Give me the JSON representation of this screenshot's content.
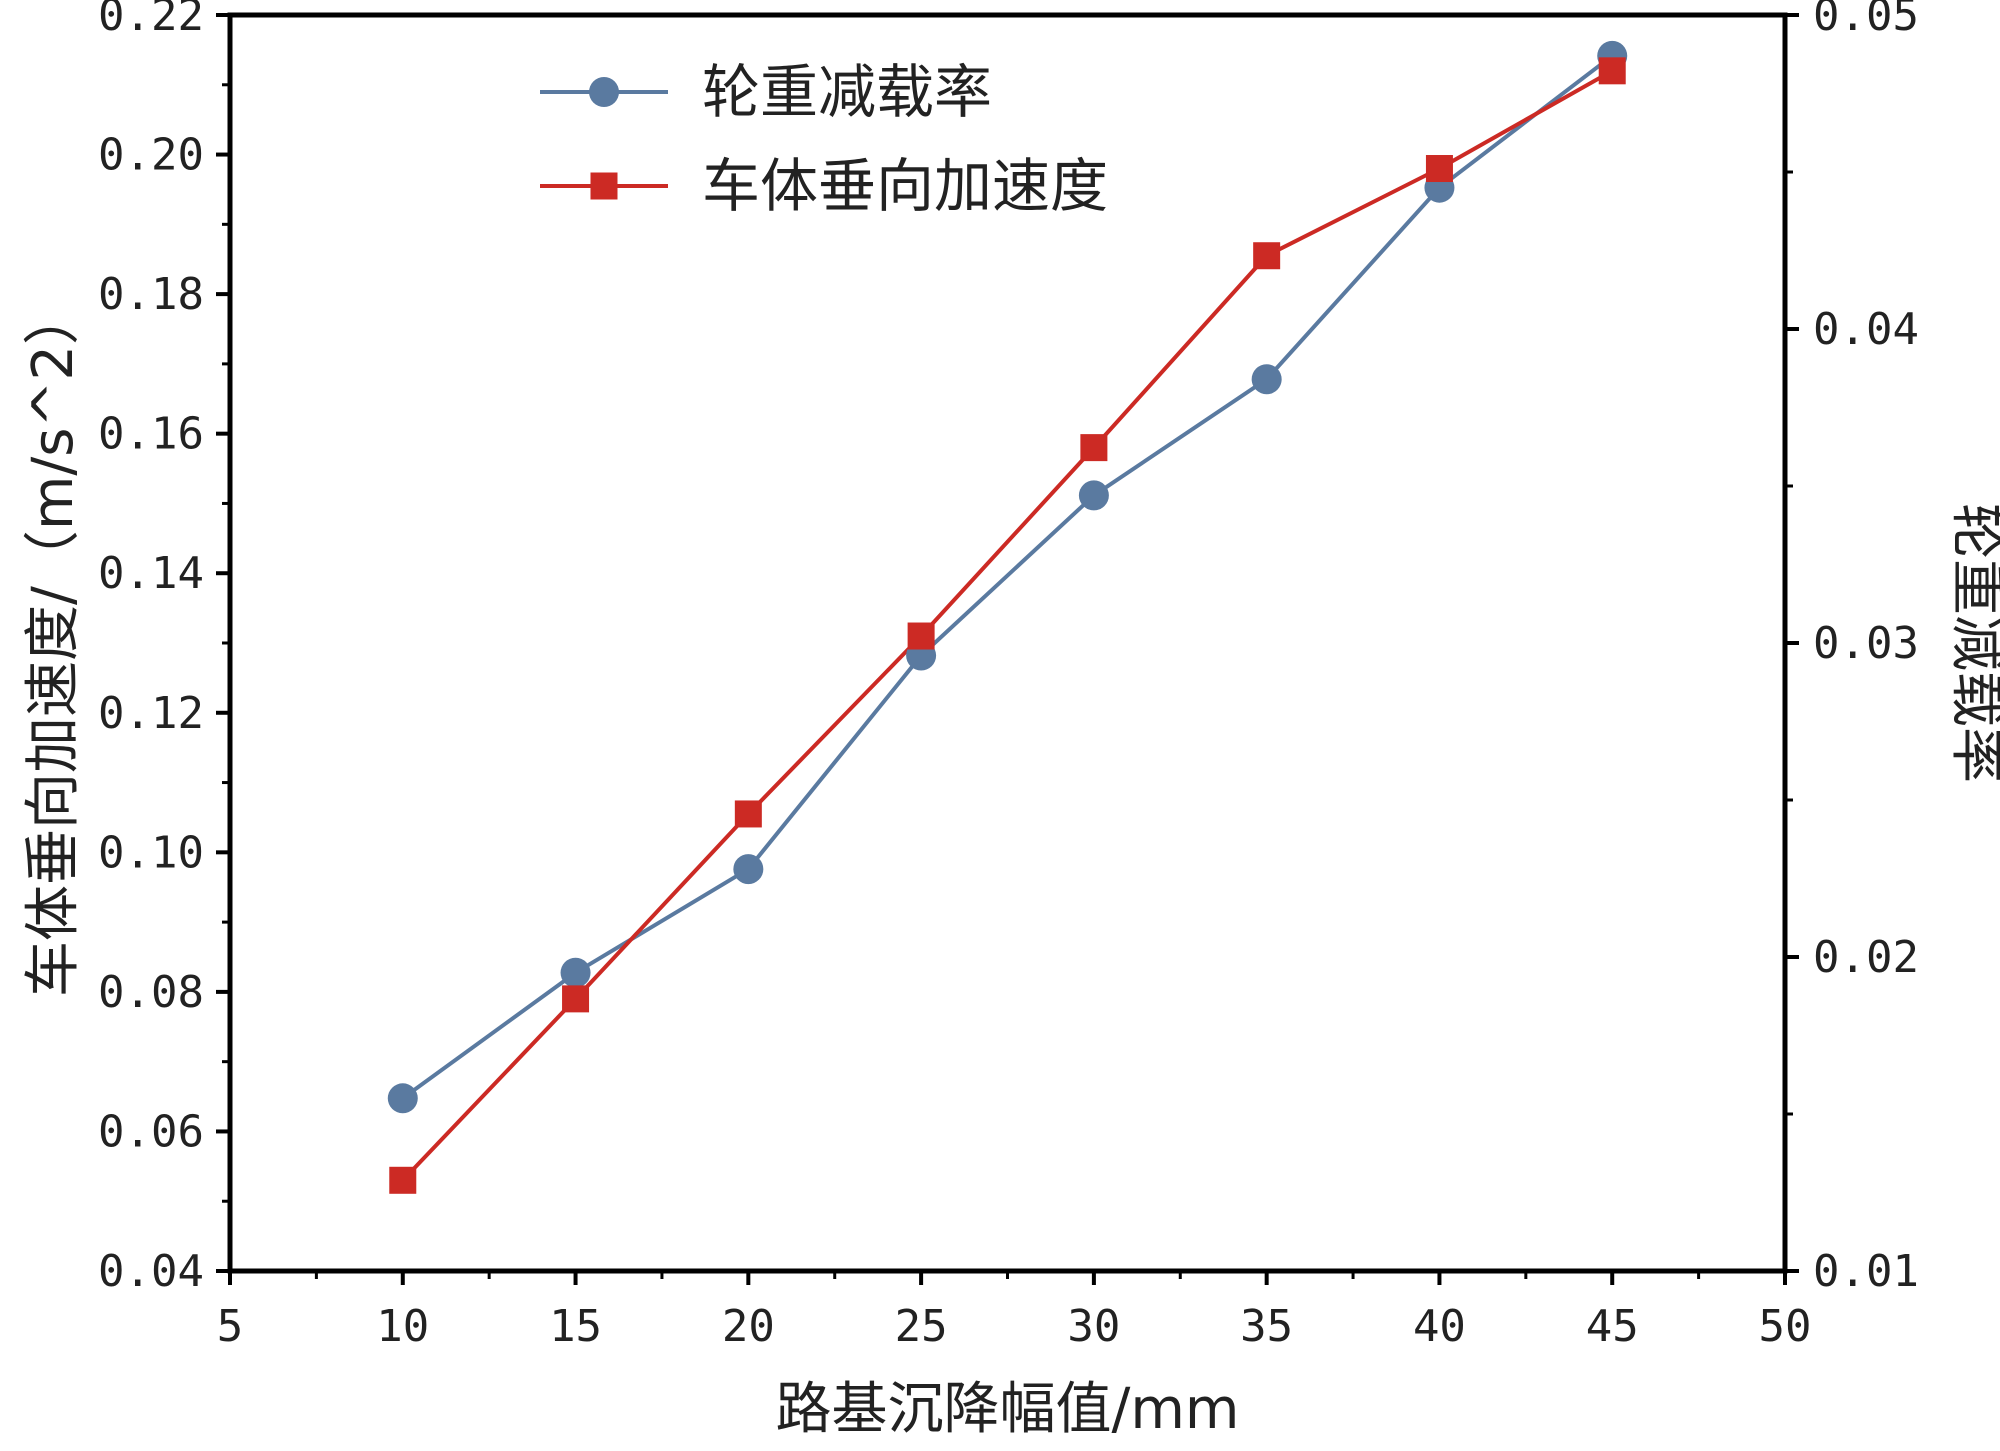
{
  "chart_data": {
    "type": "line",
    "xlabel": "路基沉降幅值/mm",
    "ylabel_left": "车体垂向加速度/（m/s^2）",
    "ylabel_right": "轮重减载率",
    "xlim": [
      5,
      50
    ],
    "x_ticks": [
      "5",
      "10",
      "15",
      "20",
      "25",
      "30",
      "35",
      "40",
      "45",
      "50"
    ],
    "ylim_left": [
      0.04,
      0.22
    ],
    "y_ticks_left": [
      "0.04",
      "0.06",
      "0.08",
      "0.10",
      "0.12",
      "0.14",
      "0.16",
      "0.18",
      "0.20",
      "0.22"
    ],
    "ylim_right": [
      0.01,
      0.05
    ],
    "y_ticks_right": [
      "0.01",
      "0.02",
      "0.03",
      "0.04",
      "0.05"
    ],
    "legend_position": "top-left",
    "grid": false,
    "x": [
      10,
      15,
      20,
      25,
      30,
      35,
      40,
      45
    ],
    "series": [
      {
        "name": "轮重减载率",
        "axis": "right",
        "marker": "circle",
        "color": "#5a7aa0",
        "values": [
          0.0155,
          0.0195,
          0.0228,
          0.0296,
          0.0347,
          0.0384,
          0.0445,
          0.0487
        ]
      },
      {
        "name": "车体垂向加速度",
        "axis": "left",
        "marker": "square",
        "color": "#cc2a24",
        "values": [
          0.053,
          0.079,
          0.1055,
          0.131,
          0.158,
          0.1855,
          0.198,
          0.212
        ]
      }
    ]
  }
}
